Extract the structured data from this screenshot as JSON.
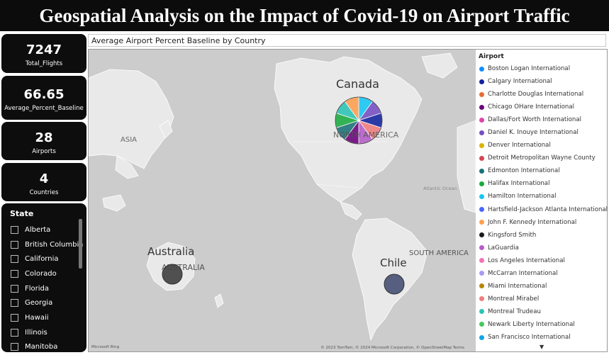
{
  "title": "Geospatial Analysis on the Impact of Covid-19 on Airport Traffic",
  "kpis": [
    {
      "value": "7247",
      "label": "Total_Flights"
    },
    {
      "value": "66.65",
      "label": "Average_Percent_Baseline"
    },
    {
      "value": "28",
      "label": "Airports"
    },
    {
      "value": "4",
      "label": "Countries"
    }
  ],
  "state_slicer": {
    "header": "State",
    "items": [
      "Alberta",
      "British Columbia",
      "California",
      "Colorado",
      "Florida",
      "Georgia",
      "Hawaii",
      "Illinois",
      "Manitoba"
    ]
  },
  "map": {
    "title": "Average Airport Percent Baseline by Country",
    "labels": {
      "asia": "ASIA",
      "north_america": "NORTH AMERICA",
      "australia_region": "AUSTRALIA",
      "south_america": "SOUTH AMERICA",
      "atlantic": "Atlantic Ocean",
      "canada": "Canada",
      "australia": "Australia",
      "chile": "Chile"
    },
    "copyright": "© 2023 TomTom, © 2024 Microsoft Corporation, © OpenStreetMap  Terms",
    "brand": "Microsoft Bing"
  },
  "legend": {
    "title": "Airport",
    "items": [
      {
        "name": "Boston Logan International",
        "color": "#118DFF"
      },
      {
        "name": "Calgary International",
        "color": "#12239E"
      },
      {
        "name": "Charlotte Douglas International",
        "color": "#E66C37"
      },
      {
        "name": "Chicago OHare International",
        "color": "#6B007B"
      },
      {
        "name": "Dallas/Fort Worth International",
        "color": "#E044A7"
      },
      {
        "name": "Daniel K. Inouye International",
        "color": "#744EC2"
      },
      {
        "name": "Denver International",
        "color": "#D9B300"
      },
      {
        "name": "Detroit Metropolitan Wayne County",
        "color": "#D64550"
      },
      {
        "name": "Edmonton International",
        "color": "#197278"
      },
      {
        "name": "Halifax International",
        "color": "#1AAB40"
      },
      {
        "name": "Hamilton International",
        "color": "#15C6F4"
      },
      {
        "name": "Hartsfield-Jackson Atlanta International",
        "color": "#4766FF"
      },
      {
        "name": "John F. Kennedy International",
        "color": "#FF9F4F"
      },
      {
        "name": "Kingsford Smith",
        "color": "#1A1A1A"
      },
      {
        "name": "LaGuardia",
        "color": "#B45CC8"
      },
      {
        "name": "Los Angeles International",
        "color": "#F472B6"
      },
      {
        "name": "McCarran International",
        "color": "#A79BF2"
      },
      {
        "name": "Miami International",
        "color": "#B8860B"
      },
      {
        "name": "Montreal Mirabel",
        "color": "#F07C7C"
      },
      {
        "name": "Montreal Trudeau",
        "color": "#2BC4B4"
      },
      {
        "name": "Newark Liberty International",
        "color": "#48C75E"
      },
      {
        "name": "San Francisco International",
        "color": "#0EA5E9"
      }
    ]
  }
}
